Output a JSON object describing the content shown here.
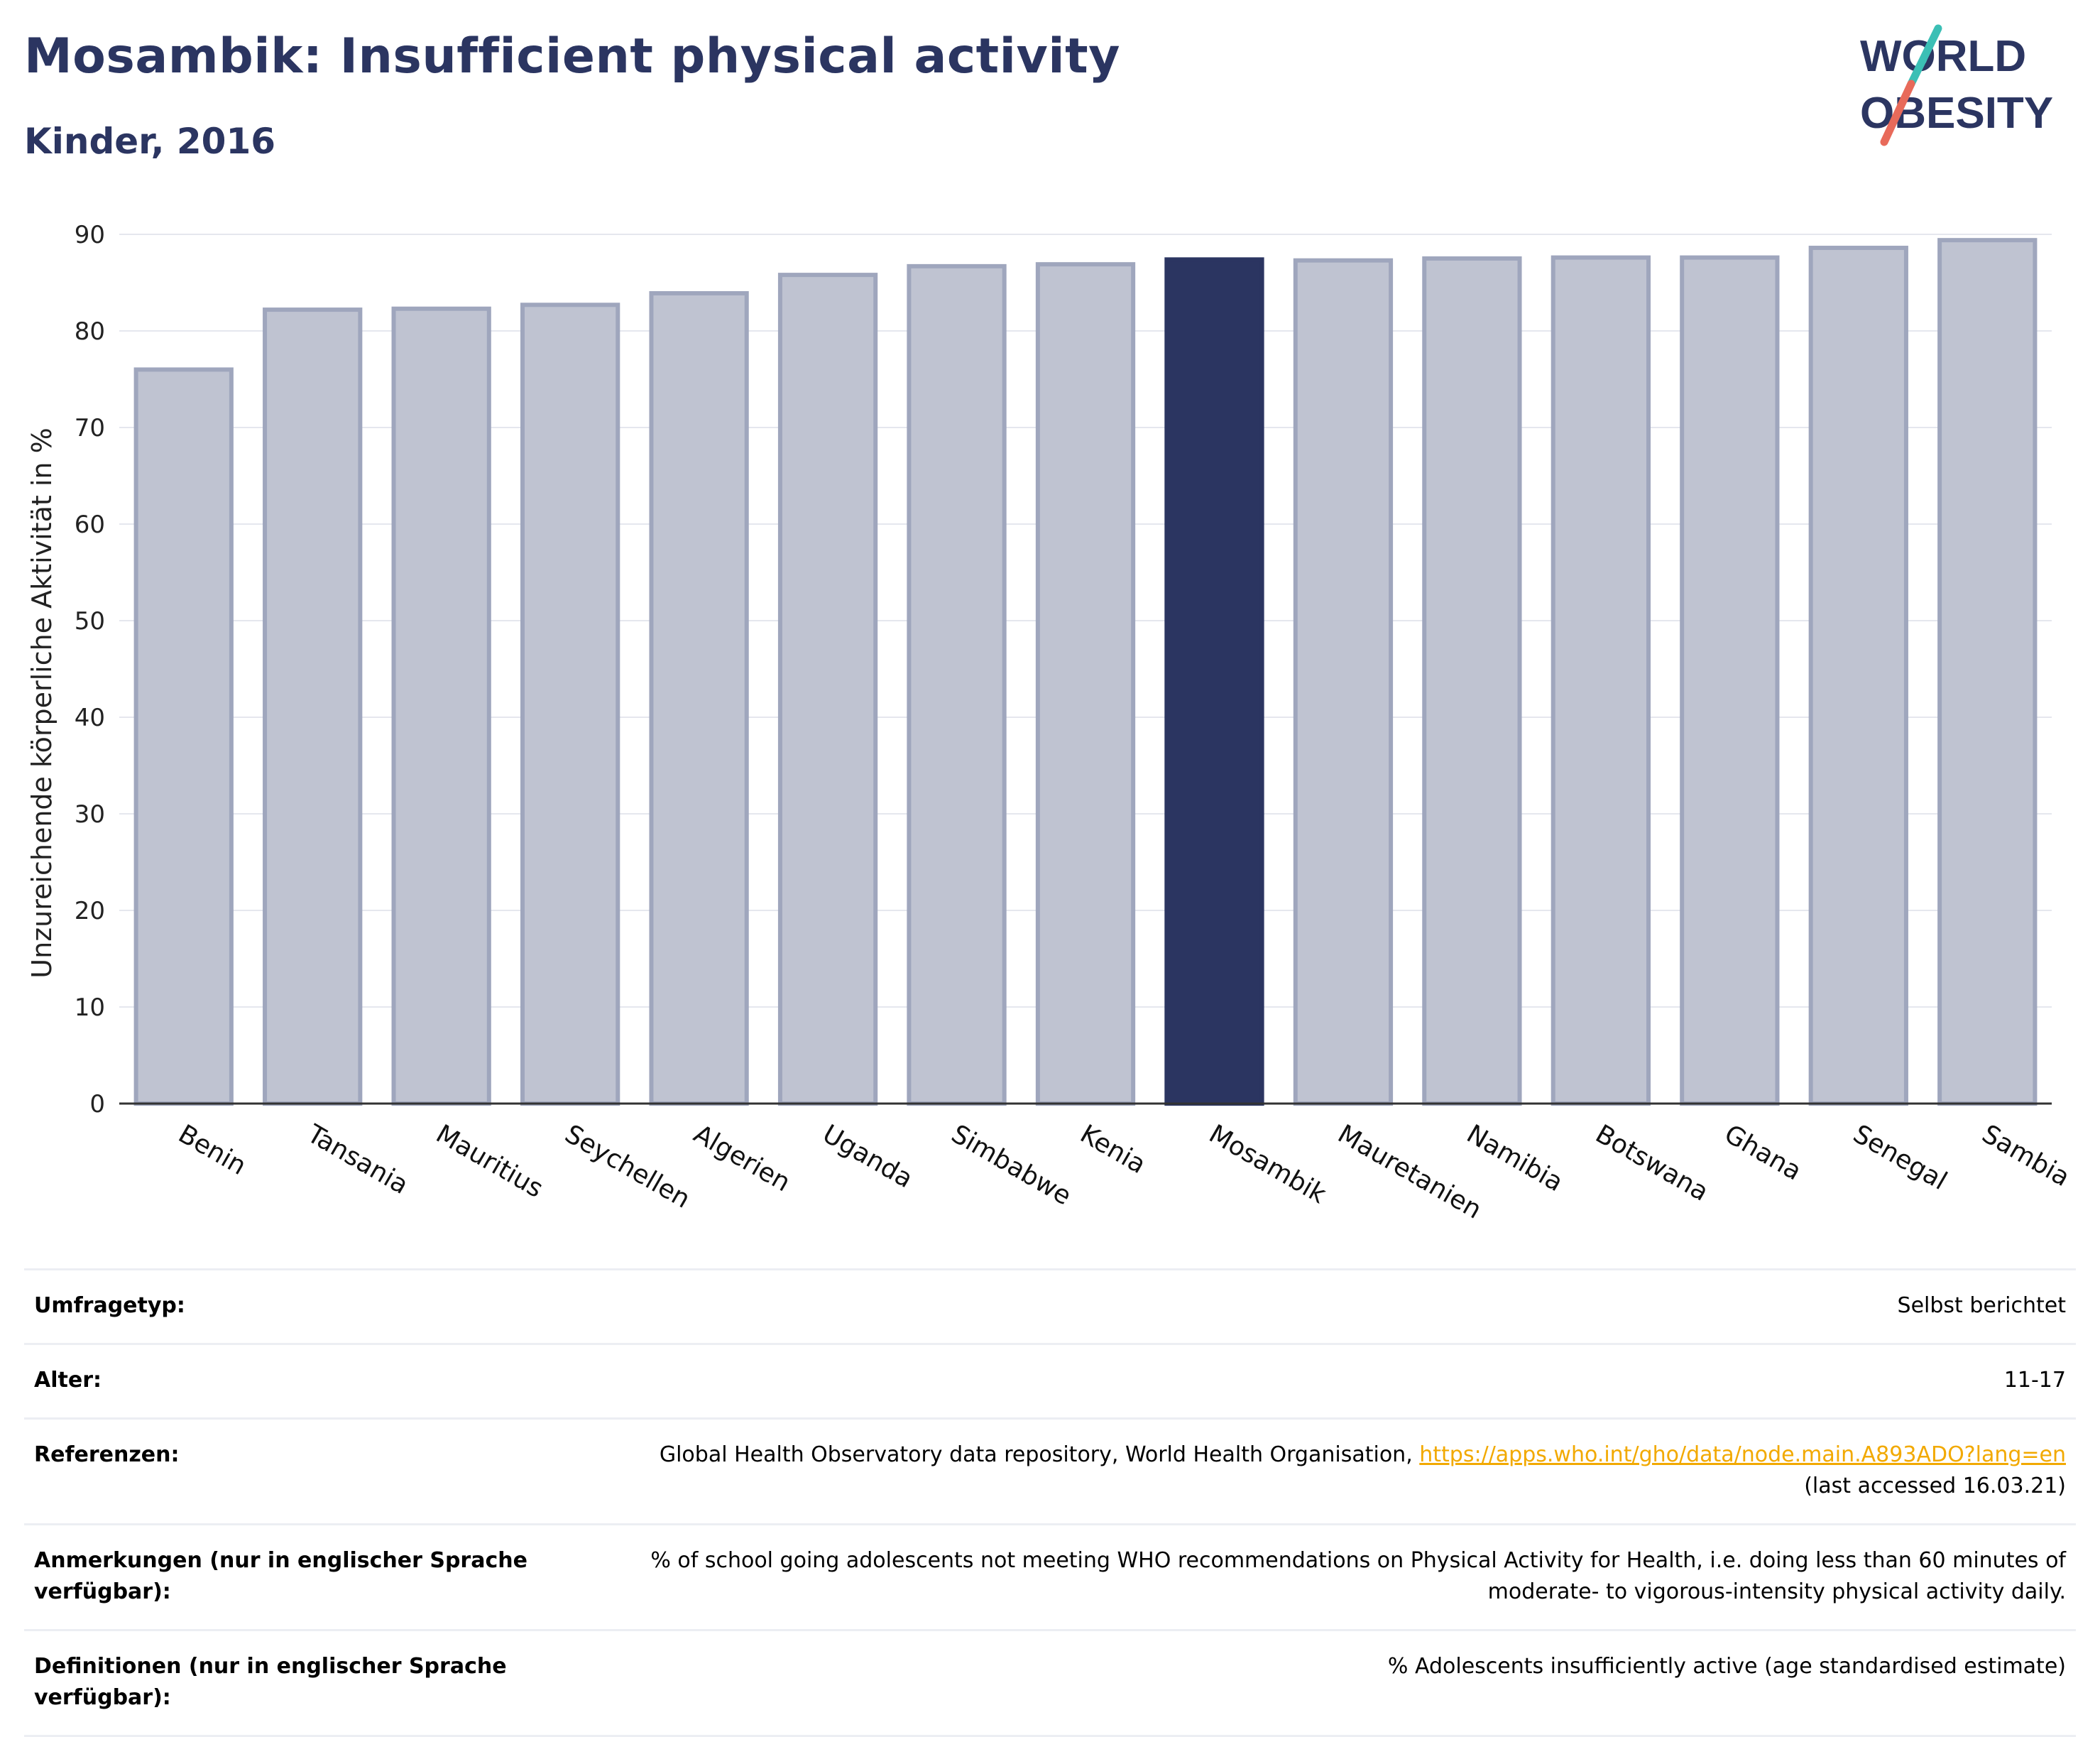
{
  "header": {
    "title": "Mosambik: Insufficient physical activity",
    "subtitle": "Kinder, 2016"
  },
  "logo": {
    "line1": "WORLD",
    "line2": "OBESITY"
  },
  "colors": {
    "title": "#2b3561",
    "highlight_bar": "#2b3561",
    "bar_fill": "#bfc3d1",
    "bar_stroke": "#9fa6bd",
    "grid": "#e5e7ee",
    "link": "#f2a900"
  },
  "chart_data": {
    "type": "bar",
    "ylabel": "Unzureichende körperliche Aktivität in %",
    "ylim": [
      0,
      90
    ],
    "yticks": [
      0,
      10,
      20,
      30,
      40,
      50,
      60,
      70,
      80,
      90
    ],
    "grid": true,
    "highlight": "Mosambik",
    "categories": [
      "Benin",
      "Tansania",
      "Mauritius",
      "Seychellen",
      "Algerien",
      "Uganda",
      "Simbabwe",
      "Kenia",
      "Mosambik",
      "Mauretanien",
      "Namibia",
      "Botswana",
      "Ghana",
      "Senegal",
      "Sambia"
    ],
    "values": [
      76.0,
      82.2,
      82.3,
      82.7,
      83.9,
      85.8,
      86.7,
      86.9,
      87.4,
      87.3,
      87.5,
      87.6,
      87.6,
      88.6,
      89.4
    ]
  },
  "info_table": [
    {
      "label": "Umfragetyp:",
      "value": "Selbst berichtet"
    },
    {
      "label": "Alter:",
      "value": "11-17"
    },
    {
      "label": "Referenzen:",
      "value": "Global Health Observatory data repository, World Health Organisation, ",
      "link": "https://apps.who.int/gho/data/node.main.A893ADO?lang=en",
      "value_after": "(last accessed 16.03.21)"
    },
    {
      "label": "Anmerkungen (nur in englischer Sprache verfügbar):",
      "value": "% of school going adolescents not meeting WHO recommendations on Physical Activity for Health, i.e. doing less than 60 minutes of moderate- to vigorous-intensity physical activity daily."
    },
    {
      "label": "Definitionen (nur in englischer Sprache verfügbar):",
      "value": "% Adolescents insufficiently active (age standardised estimate)"
    }
  ]
}
